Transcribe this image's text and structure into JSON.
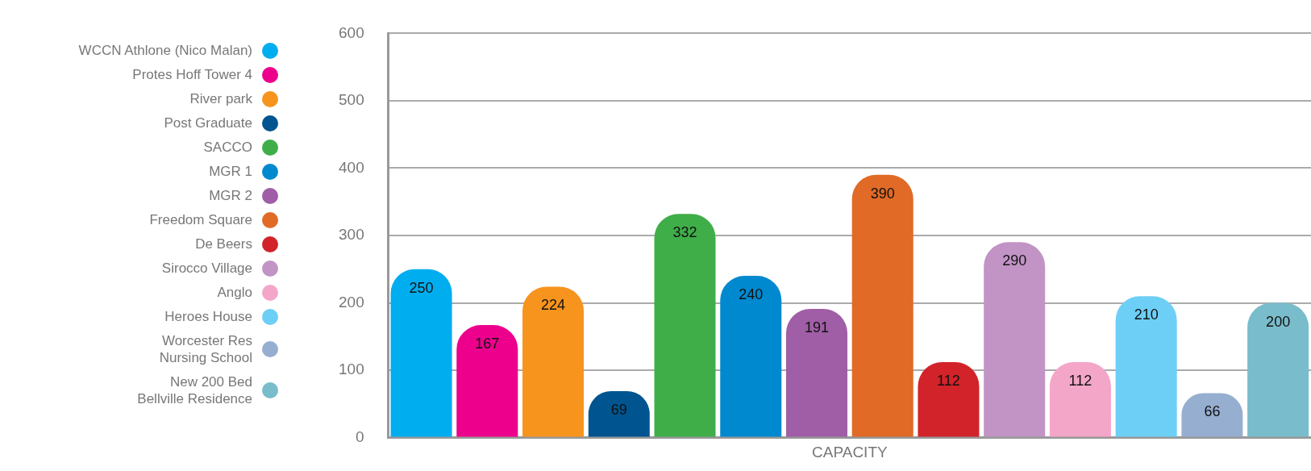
{
  "chart_data": {
    "type": "bar",
    "xlabel": "CAPACITY",
    "categories": [
      null
    ],
    "ylim": [
      0,
      600
    ],
    "yticks": [
      0,
      100,
      200,
      300,
      400,
      500,
      600
    ],
    "grid": "y",
    "legend": "left",
    "tick_labels": "y",
    "series": [
      {
        "name": "WCCN Athlone (Nico Malan)",
        "color": "#00aeef",
        "values": [
          250
        ],
        "value_labels": [
          "250"
        ]
      },
      {
        "name": "Protes Hoff Tower 4",
        "color": "#ec008c",
        "values": [
          167
        ],
        "value_labels": [
          "167"
        ]
      },
      {
        "name": "River park",
        "color": "#f7941d",
        "values": [
          224
        ],
        "value_labels": [
          "224"
        ]
      },
      {
        "name": "Post Graduate",
        "color": "#00548f",
        "values": [
          69
        ],
        "value_labels": [
          "69"
        ]
      },
      {
        "name": "SACCO",
        "color": "#3fae49",
        "values": [
          332
        ],
        "value_labels": [
          "332"
        ]
      },
      {
        "name": "MGR 1",
        "color": "#0089cf",
        "values": [
          240
        ],
        "value_labels": [
          "240"
        ]
      },
      {
        "name": "MGR 2",
        "color": "#a05ea6",
        "values": [
          191
        ],
        "value_labels": [
          "191"
        ]
      },
      {
        "name": "Freedom Square",
        "color": "#e06a26",
        "values": [
          390
        ],
        "value_labels": [
          "390"
        ]
      },
      {
        "name": "De Beers",
        "color": "#d2232a",
        "values": [
          112
        ],
        "value_labels": [
          "112"
        ]
      },
      {
        "name": "Sirocco Village",
        "color": "#c194c5",
        "values": [
          290
        ],
        "value_labels": [
          "290"
        ]
      },
      {
        "name": "Anglo",
        "color": "#f4a6c8",
        "values": [
          112
        ],
        "value_labels": [
          "112"
        ]
      },
      {
        "name": "Heroes House",
        "color": "#6dcff6",
        "values": [
          210
        ],
        "value_labels": [
          "210"
        ]
      },
      {
        "name": "Worcester Res\nNursing School",
        "color": "#96aed0",
        "values": [
          66
        ],
        "value_labels": [
          "66"
        ]
      },
      {
        "name": "New 200 Bed\nBellville Residence",
        "color": "#79bccb",
        "values": [
          200
        ],
        "value_labels": [
          "200"
        ]
      }
    ]
  }
}
